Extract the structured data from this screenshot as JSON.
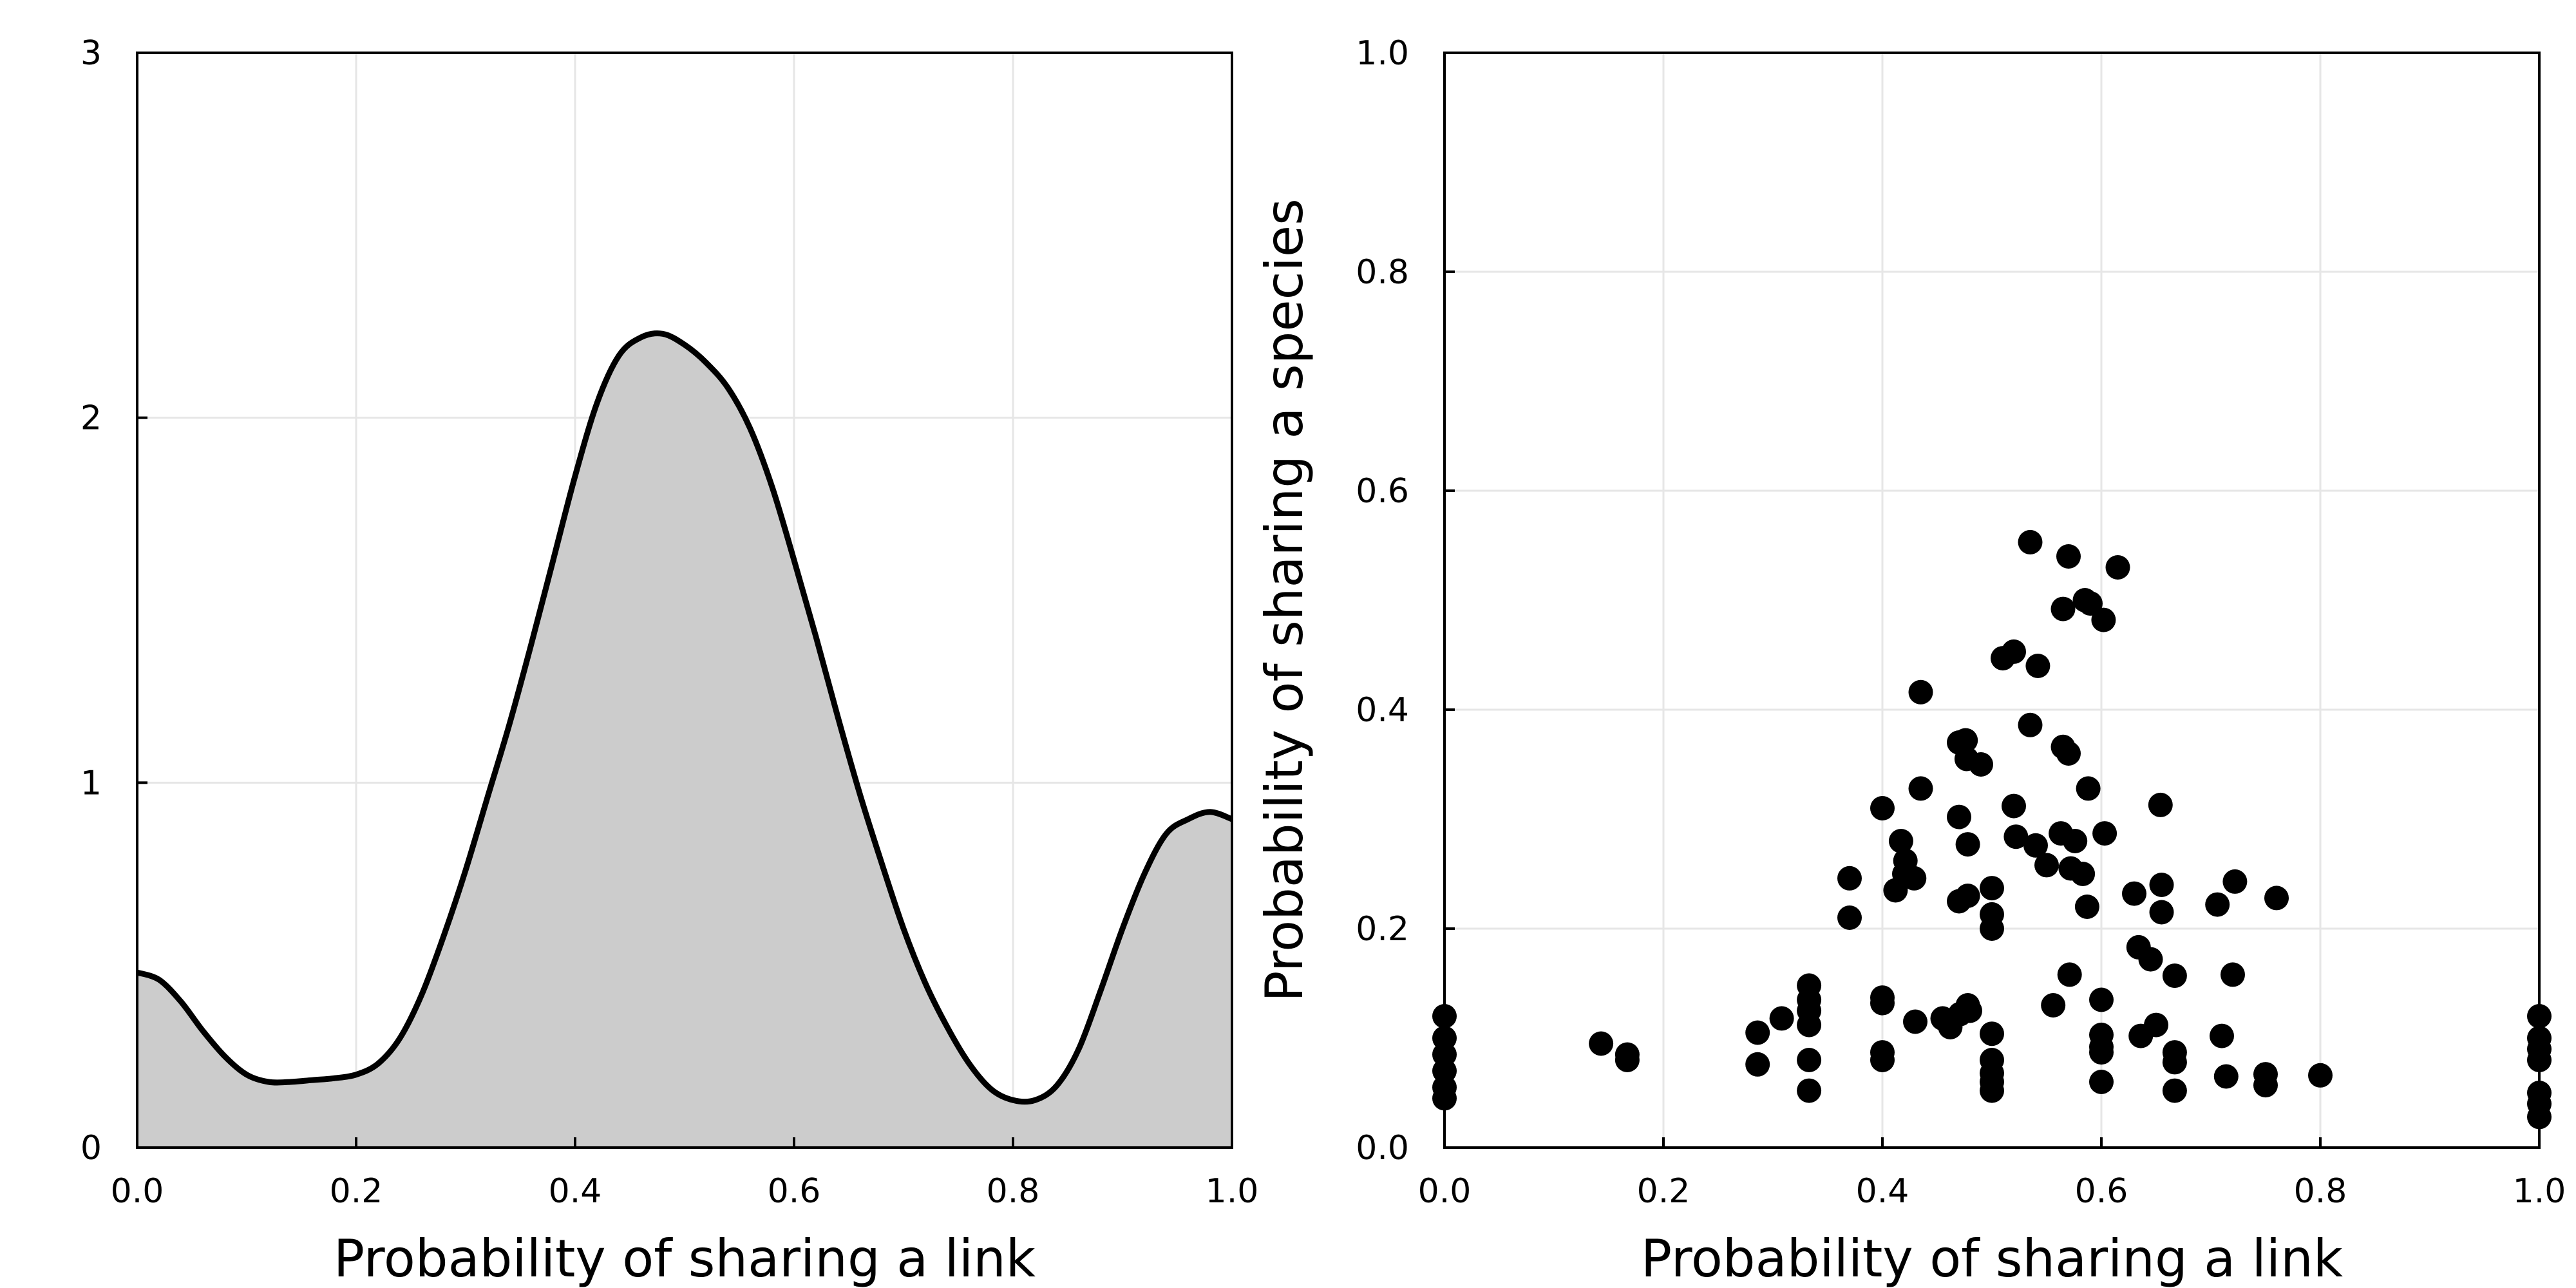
{
  "chart_data": [
    {
      "type": "area",
      "xlabel": "Probability of sharing a link",
      "ylabel": "",
      "xlim": [
        0,
        1
      ],
      "ylim": [
        0,
        3
      ],
      "xticks": [
        "0.0",
        "0.2",
        "0.4",
        "0.6",
        "0.8",
        "1.0"
      ],
      "xtick_values": [
        0,
        0.2,
        0.4,
        0.6,
        0.8,
        1.0
      ],
      "yticks": [
        "0",
        "1",
        "2",
        "3"
      ],
      "ytick_values": [
        0,
        1,
        2,
        3
      ],
      "grid": true,
      "fill_color": "#cccccc",
      "line_color": "#000000",
      "x": [
        0,
        0.02,
        0.04,
        0.06,
        0.08,
        0.1,
        0.12,
        0.14,
        0.16,
        0.18,
        0.2,
        0.22,
        0.24,
        0.26,
        0.28,
        0.3,
        0.32,
        0.34,
        0.36,
        0.38,
        0.4,
        0.42,
        0.44,
        0.46,
        0.48,
        0.5,
        0.52,
        0.54,
        0.56,
        0.58,
        0.6,
        0.62,
        0.64,
        0.66,
        0.68,
        0.7,
        0.72,
        0.74,
        0.76,
        0.78,
        0.8,
        0.82,
        0.84,
        0.86,
        0.88,
        0.9,
        0.92,
        0.94,
        0.96,
        0.98,
        1.0
      ],
      "y": [
        0.48,
        0.46,
        0.4,
        0.32,
        0.25,
        0.2,
        0.18,
        0.18,
        0.185,
        0.19,
        0.2,
        0.23,
        0.3,
        0.42,
        0.58,
        0.76,
        0.96,
        1.16,
        1.38,
        1.61,
        1.84,
        2.04,
        2.17,
        2.22,
        2.23,
        2.2,
        2.15,
        2.08,
        1.97,
        1.81,
        1.61,
        1.4,
        1.18,
        0.97,
        0.78,
        0.6,
        0.45,
        0.33,
        0.23,
        0.16,
        0.13,
        0.13,
        0.17,
        0.27,
        0.43,
        0.6,
        0.75,
        0.86,
        0.9,
        0.92,
        0.9
      ]
    },
    {
      "type": "scatter",
      "xlabel": "Probability of sharing a link",
      "ylabel": "Probability of sharing a species",
      "xlim": [
        0,
        1
      ],
      "ylim": [
        0,
        1
      ],
      "xticks": [
        "0.0",
        "0.2",
        "0.4",
        "0.6",
        "0.8",
        "1.0"
      ],
      "xtick_values": [
        0,
        0.2,
        0.4,
        0.6,
        0.8,
        1.0
      ],
      "yticks": [
        "0.0",
        "0.2",
        "0.4",
        "0.6",
        "0.8",
        "1.0"
      ],
      "ytick_values": [
        0,
        0.2,
        0.4,
        0.6,
        0.8,
        1.0
      ],
      "grid": true,
      "marker_color": "#000000",
      "points": [
        [
          0.0,
          0.12
        ],
        [
          0.0,
          0.1
        ],
        [
          0.0,
          0.085
        ],
        [
          0.0,
          0.07
        ],
        [
          0.0,
          0.055
        ],
        [
          0.0,
          0.045
        ],
        [
          0.143,
          0.095
        ],
        [
          0.167,
          0.085
        ],
        [
          0.167,
          0.08
        ],
        [
          0.286,
          0.105
        ],
        [
          0.286,
          0.076
        ],
        [
          0.308,
          0.118
        ],
        [
          0.333,
          0.148
        ],
        [
          0.333,
          0.135
        ],
        [
          0.333,
          0.125
        ],
        [
          0.333,
          0.112
        ],
        [
          0.333,
          0.08
        ],
        [
          0.333,
          0.052
        ],
        [
          0.37,
          0.246
        ],
        [
          0.37,
          0.21
        ],
        [
          0.4,
          0.31
        ],
        [
          0.4,
          0.137
        ],
        [
          0.4,
          0.132
        ],
        [
          0.4,
          0.087
        ],
        [
          0.4,
          0.08
        ],
        [
          0.412,
          0.235
        ],
        [
          0.417,
          0.28
        ],
        [
          0.42,
          0.25
        ],
        [
          0.421,
          0.262
        ],
        [
          0.429,
          0.246
        ],
        [
          0.43,
          0.115
        ],
        [
          0.435,
          0.416
        ],
        [
          0.435,
          0.328
        ],
        [
          0.455,
          0.118
        ],
        [
          0.462,
          0.11
        ],
        [
          0.47,
          0.37
        ],
        [
          0.47,
          0.302
        ],
        [
          0.47,
          0.225
        ],
        [
          0.471,
          0.122
        ],
        [
          0.476,
          0.372
        ],
        [
          0.477,
          0.355
        ],
        [
          0.478,
          0.277
        ],
        [
          0.478,
          0.23
        ],
        [
          0.478,
          0.13
        ],
        [
          0.48,
          0.125
        ],
        [
          0.49,
          0.35
        ],
        [
          0.5,
          0.237
        ],
        [
          0.5,
          0.213
        ],
        [
          0.5,
          0.2
        ],
        [
          0.5,
          0.104
        ],
        [
          0.5,
          0.08
        ],
        [
          0.5,
          0.068
        ],
        [
          0.5,
          0.06
        ],
        [
          0.5,
          0.052
        ],
        [
          0.51,
          0.447
        ],
        [
          0.52,
          0.453
        ],
        [
          0.52,
          0.312
        ],
        [
          0.522,
          0.284
        ],
        [
          0.535,
          0.553
        ],
        [
          0.535,
          0.386
        ],
        [
          0.54,
          0.276
        ],
        [
          0.542,
          0.44
        ],
        [
          0.55,
          0.258
        ],
        [
          0.556,
          0.13
        ],
        [
          0.563,
          0.287
        ],
        [
          0.565,
          0.492
        ],
        [
          0.565,
          0.366
        ],
        [
          0.57,
          0.54
        ],
        [
          0.57,
          0.36
        ],
        [
          0.571,
          0.158
        ],
        [
          0.572,
          0.255
        ],
        [
          0.576,
          0.28
        ],
        [
          0.583,
          0.25
        ],
        [
          0.585,
          0.5
        ],
        [
          0.587,
          0.22
        ],
        [
          0.588,
          0.328
        ],
        [
          0.59,
          0.497
        ],
        [
          0.6,
          0.135
        ],
        [
          0.6,
          0.103
        ],
        [
          0.6,
          0.092
        ],
        [
          0.6,
          0.087
        ],
        [
          0.6,
          0.06
        ],
        [
          0.602,
          0.482
        ],
        [
          0.603,
          0.287
        ],
        [
          0.615,
          0.53
        ],
        [
          0.63,
          0.232
        ],
        [
          0.634,
          0.183
        ],
        [
          0.636,
          0.102
        ],
        [
          0.645,
          0.172
        ],
        [
          0.65,
          0.112
        ],
        [
          0.654,
          0.313
        ],
        [
          0.655,
          0.24
        ],
        [
          0.655,
          0.215
        ],
        [
          0.667,
          0.157
        ],
        [
          0.667,
          0.087
        ],
        [
          0.667,
          0.078
        ],
        [
          0.667,
          0.052
        ],
        [
          0.706,
          0.222
        ],
        [
          0.71,
          0.102
        ],
        [
          0.714,
          0.065
        ],
        [
          0.72,
          0.158
        ],
        [
          0.722,
          0.243
        ],
        [
          0.75,
          0.067
        ],
        [
          0.75,
          0.057
        ],
        [
          0.76,
          0.228
        ],
        [
          0.8,
          0.066
        ],
        [
          1.0,
          0.12
        ],
        [
          1.0,
          0.1
        ],
        [
          1.0,
          0.09
        ],
        [
          1.0,
          0.08
        ],
        [
          1.0,
          0.05
        ],
        [
          1.0,
          0.04
        ],
        [
          1.0,
          0.028
        ]
      ]
    }
  ]
}
